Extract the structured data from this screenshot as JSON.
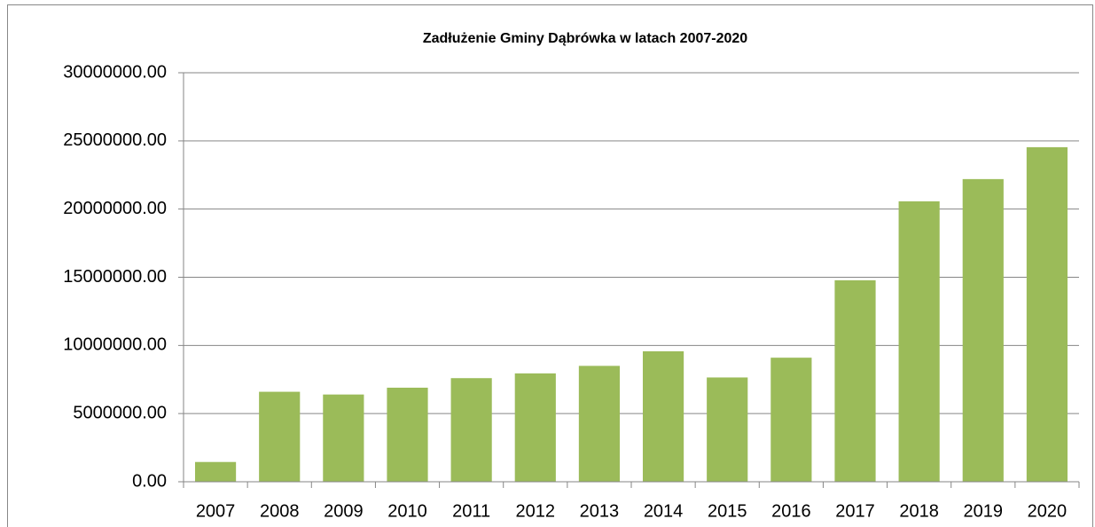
{
  "chart_data": {
    "type": "bar",
    "title": "Zadłużenie Gminy Dąbrówka  w latach 2007-2020",
    "categories": [
      "2007",
      "2008",
      "2009",
      "2010",
      "2011",
      "2012",
      "2013",
      "2014",
      "2015",
      "2016",
      "2017",
      "2018",
      "2019",
      "2020"
    ],
    "values": [
      1450000,
      6600000,
      6400000,
      6900000,
      7600000,
      7950000,
      8500000,
      9570000,
      7650000,
      9100000,
      14780000,
      20570000,
      22200000,
      24540000
    ],
    "color": "#9bbb59",
    "ylim": [
      0,
      30000000
    ],
    "yticks": [
      {
        "value": 0,
        "label": "0.00"
      },
      {
        "value": 5000000,
        "label": "5000000.00"
      },
      {
        "value": 10000000,
        "label": "10000000.00"
      },
      {
        "value": 15000000,
        "label": "15000000.00"
      },
      {
        "value": 20000000,
        "label": "20000000.00"
      },
      {
        "value": 25000000,
        "label": "25000000.00"
      },
      {
        "value": 30000000,
        "label": "30000000.00"
      }
    ],
    "grid": true
  }
}
